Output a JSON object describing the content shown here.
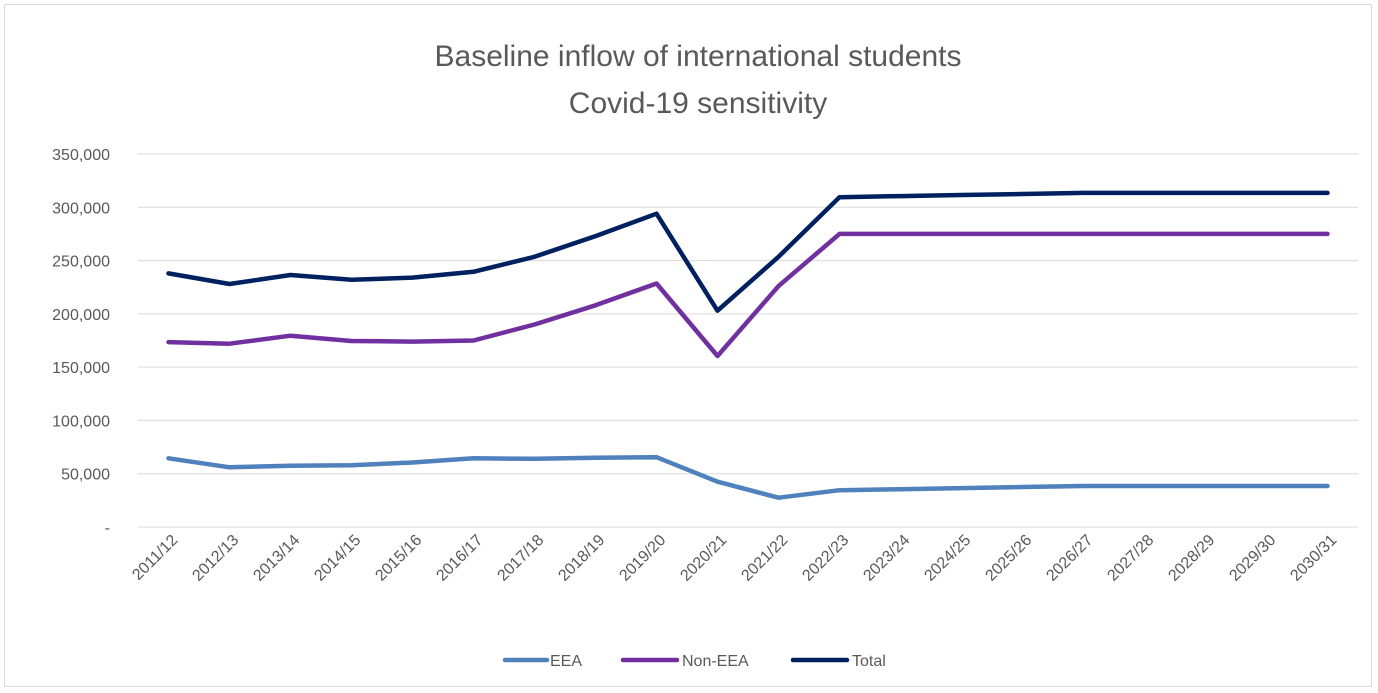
{
  "chart_data": {
    "type": "line",
    "title": "Baseline inflow of international students",
    "subtitle": "Covid-19 sensitivity",
    "xlabel": "",
    "ylabel": "",
    "ylim": [
      0,
      350000
    ],
    "yticks": [
      0,
      50000,
      100000,
      150000,
      200000,
      250000,
      300000,
      350000
    ],
    "ytick_labels": [
      "-",
      "50,000",
      "100,000",
      "150,000",
      "200,000",
      "250,000",
      "300,000",
      "350,000"
    ],
    "grid": true,
    "legend_position": "bottom",
    "categories": [
      "2011/12",
      "2012/13",
      "2013/14",
      "2014/15",
      "2015/16",
      "2016/17",
      "2017/18",
      "2018/19",
      "2019/20",
      "2020/21",
      "2021/22",
      "2022/23",
      "2023/24",
      "2024/25",
      "2025/26",
      "2026/27",
      "2027/28",
      "2028/29",
      "2029/30",
      "2030/31"
    ],
    "series": [
      {
        "name": "EEA",
        "color": "#4f81bd",
        "values": [
          64500,
          56000,
          57500,
          58000,
          60500,
          64500,
          64000,
          65000,
          65500,
          42500,
          27500,
          34500,
          35500,
          36500,
          37500,
          38500,
          38500,
          38500,
          38500,
          38500
        ]
      },
      {
        "name": "Non-EEA",
        "color": "#7030a0",
        "values": [
          173500,
          172000,
          179500,
          174500,
          174000,
          175000,
          190000,
          208000,
          228500,
          160500,
          226000,
          275000,
          275000,
          275000,
          275000,
          275000,
          275000,
          275000,
          275000,
          275000
        ]
      },
      {
        "name": "Total",
        "color": "#002060",
        "values": [
          238000,
          228000,
          236500,
          232000,
          234000,
          239500,
          253500,
          273000,
          294000,
          203000,
          253500,
          309500,
          310500,
          311500,
          312500,
          313500,
          313500,
          313500,
          313500,
          313500
        ]
      }
    ]
  }
}
